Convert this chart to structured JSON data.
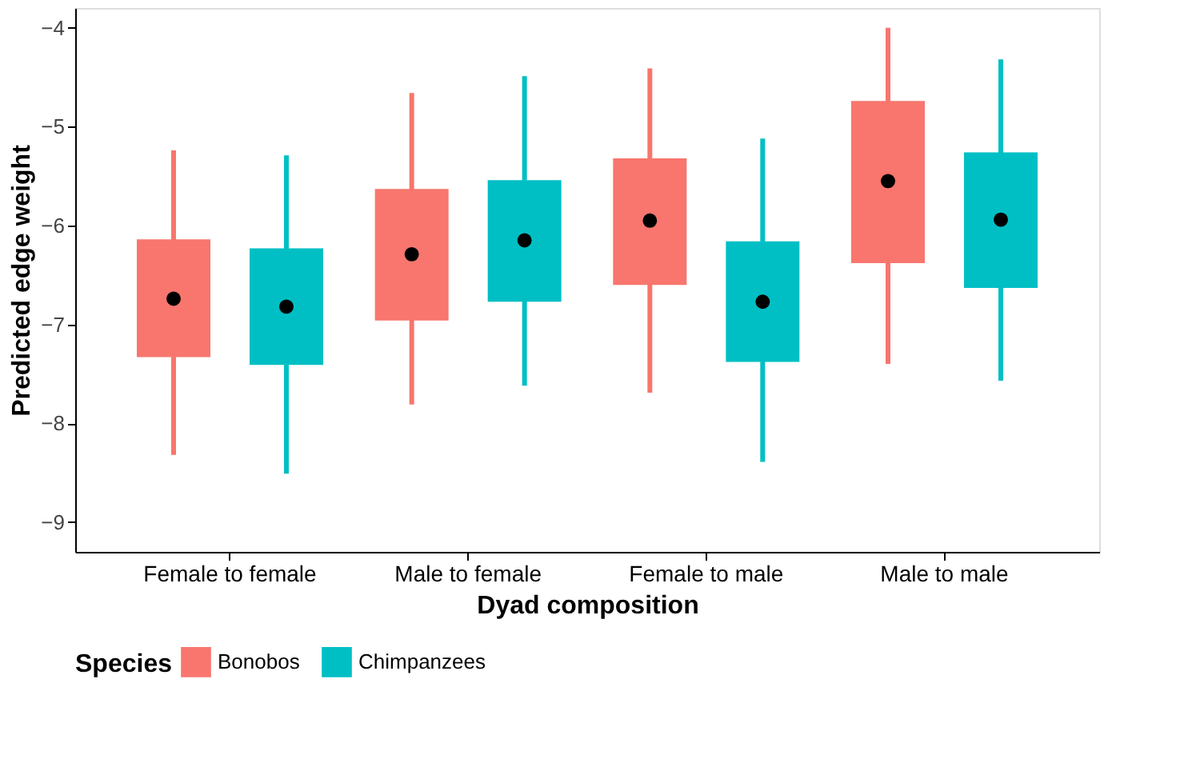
{
  "chart_data": {
    "type": "box",
    "xlabel": "Dyad composition",
    "ylabel": "Predicted edge weight",
    "legend_title": "Species",
    "legend": "bottom",
    "categories": [
      "Female to female",
      "Male to female",
      "Female to male",
      "Male to male"
    ],
    "ylim": [
      -9.3,
      -3.8
    ],
    "yticks": [
      -9,
      -8,
      -7,
      -6,
      -5,
      -4
    ],
    "series": [
      {
        "name": "Bonobos",
        "color": "#f8766d",
        "boxes": [
          {
            "low": -8.32,
            "q1": -7.33,
            "median": -6.74,
            "q3": -6.14,
            "high": -5.24
          },
          {
            "low": -7.81,
            "q1": -6.96,
            "median": -6.29,
            "q3": -5.63,
            "high": -4.66
          },
          {
            "low": -7.69,
            "q1": -6.6,
            "median": -5.95,
            "q3": -5.32,
            "high": -4.41
          },
          {
            "low": -7.4,
            "q1": -6.38,
            "median": -5.55,
            "q3": -4.74,
            "high": -4.0
          }
        ]
      },
      {
        "name": "Chimpanzees",
        "color": "#00bfc4",
        "boxes": [
          {
            "low": -8.51,
            "q1": -7.41,
            "median": -6.82,
            "q3": -6.23,
            "high": -5.29
          },
          {
            "low": -7.62,
            "q1": -6.77,
            "median": -6.15,
            "q3": -5.54,
            "high": -4.49
          },
          {
            "low": -8.39,
            "q1": -7.38,
            "median": -6.77,
            "q3": -6.16,
            "high": -5.12
          },
          {
            "low": -7.57,
            "q1": -6.63,
            "median": -5.94,
            "q3": -5.26,
            "high": -4.32
          }
        ]
      }
    ]
  }
}
